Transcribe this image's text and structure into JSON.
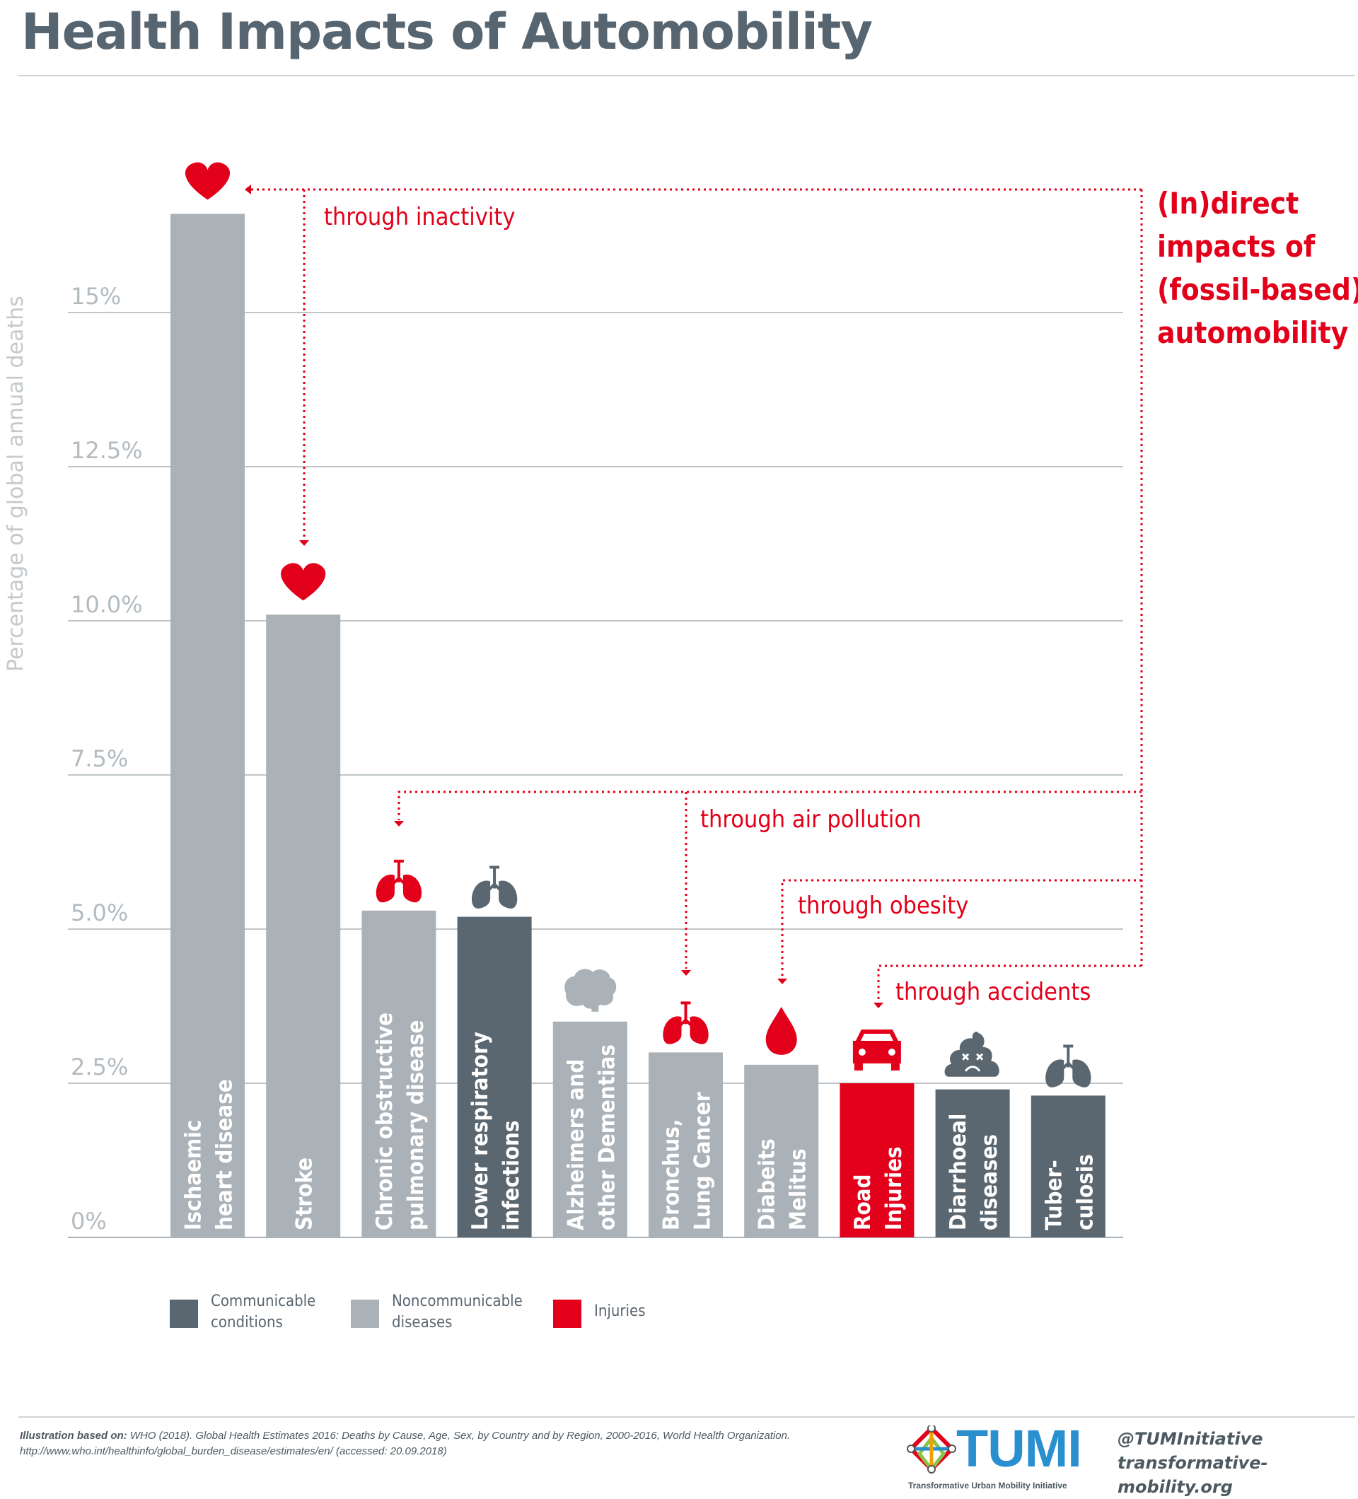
{
  "title": "Health Impacts of Automobility",
  "chart_data": {
    "type": "bar",
    "ylabel": "Percentage of global annual deaths",
    "ylim": [
      0,
      17.5
    ],
    "ticks": [
      {
        "value": 0,
        "label": "0%"
      },
      {
        "value": 2.5,
        "label": "2.5%"
      },
      {
        "value": 5.0,
        "label": "5.0%"
      },
      {
        "value": 7.5,
        "label": "7.5%"
      },
      {
        "value": 10.0,
        "label": "10.0%"
      },
      {
        "value": 12.5,
        "label": "12.5%"
      },
      {
        "value": 15,
        "label": "15%"
      }
    ],
    "grid": true,
    "categories": [
      {
        "lines": [
          "Ischaemic",
          "heart disease"
        ],
        "value": 16.6,
        "group": "noncommunicable",
        "icon": "heart-icon",
        "icon_color": "#e2001a"
      },
      {
        "lines": [
          "Stroke"
        ],
        "value": 10.1,
        "group": "noncommunicable",
        "icon": "heart-icon",
        "icon_color": "#e2001a"
      },
      {
        "lines": [
          "Chronic obstructive",
          "pulmonary disease"
        ],
        "value": 5.3,
        "group": "noncommunicable",
        "icon": "lungs-icon",
        "icon_color": "#e2001a"
      },
      {
        "lines": [
          "Lower respiratory",
          "infections"
        ],
        "value": 5.2,
        "group": "communicable",
        "icon": "lungs-icon",
        "icon_color": "#5a6670"
      },
      {
        "lines": [
          "Alzheimers and",
          "other Dementias"
        ],
        "value": 3.5,
        "group": "noncommunicable",
        "icon": "brain-icon",
        "icon_color": "#aab2b7"
      },
      {
        "lines": [
          "Bronchus,",
          "Lung Cancer"
        ],
        "value": 3.0,
        "group": "noncommunicable",
        "icon": "lungs-icon",
        "icon_color": "#e2001a"
      },
      {
        "lines": [
          "Diabeits",
          "Melitus"
        ],
        "value": 2.8,
        "group": "noncommunicable",
        "icon": "drop-icon",
        "icon_color": "#e2001a"
      },
      {
        "lines": [
          "Road",
          "Injuries"
        ],
        "value": 2.5,
        "group": "injuries",
        "icon": "car-icon",
        "icon_color": "#e2001a"
      },
      {
        "lines": [
          "Diarrhoeal",
          "diseases"
        ],
        "value": 2.4,
        "group": "communicable",
        "icon": "poop-icon",
        "icon_color": "#5a6670"
      },
      {
        "lines": [
          "Tuber-",
          "culosis"
        ],
        "value": 2.3,
        "group": "communicable",
        "icon": "lungs-icon",
        "icon_color": "#5a6670"
      }
    ],
    "annotations": {
      "headline": [
        "(In)direct",
        "impacts of",
        "(fossil-based)",
        "automobility"
      ],
      "inactivity": "through inactivity",
      "air_pollution": "through air pollution",
      "obesity": "through obesity",
      "accidents": "through accidents"
    }
  },
  "colors": {
    "communicable": "#5a6670",
    "noncommunicable": "#aab2b7",
    "injuries": "#e2001a",
    "accent": "#e2001a",
    "grid": "#aab2b7",
    "axis_text": "#b3bbc0"
  },
  "legend": {
    "communicable": [
      "Communicable",
      "conditions"
    ],
    "noncommunicable": [
      "Noncommunicable",
      "diseases"
    ],
    "injuries": [
      "Injuries"
    ]
  },
  "footer": {
    "source_bold": "Illustration based on:",
    "source_text": " WHO (2018). Global Health Estimates 2016: Deaths by Cause, Age, Sex, by Country and by Region, 2000-2016, World Health Organization.",
    "source_url": "http://www.who.int/healthinfo/global_burden_disease/estimates/en/ (accessed: 20.09.2018)",
    "logo_text": "TUMI",
    "logo_subtitle": "Transformative Urban Mobility Initiative",
    "handle": "@TUMInitiative",
    "website": "transformative-mobility.org"
  }
}
